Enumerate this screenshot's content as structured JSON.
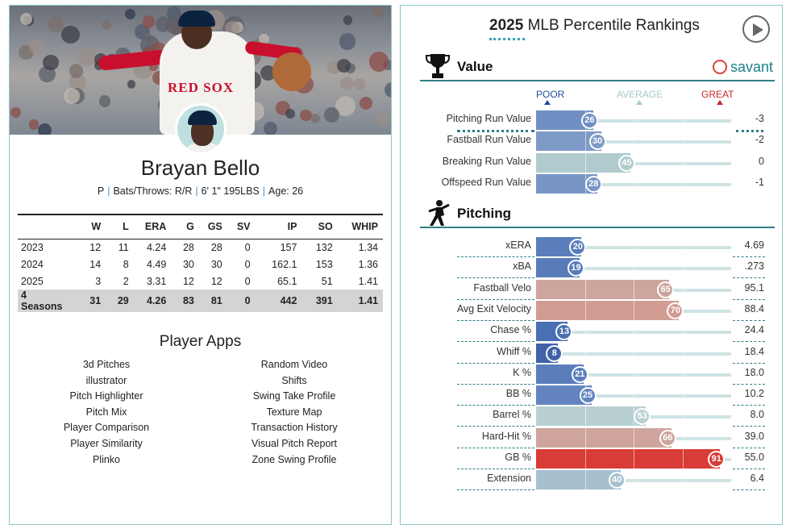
{
  "player": {
    "name": "Brayan Bello",
    "bio_position": "P",
    "bio_bats_throws": "Bats/Throws: R/R",
    "bio_size": "6' 1\" 195LBS",
    "bio_age": "Age: 26",
    "jersey_text": "RED SOX"
  },
  "stats": {
    "headers": [
      "",
      "W",
      "L",
      "ERA",
      "G",
      "GS",
      "SV",
      "IP",
      "SO",
      "WHIP"
    ],
    "rows": [
      [
        "2023",
        "12",
        "11",
        "4.24",
        "28",
        "28",
        "0",
        "157",
        "132",
        "1.34"
      ],
      [
        "2024",
        "14",
        "8",
        "4.49",
        "30",
        "30",
        "0",
        "162.1",
        "153",
        "1.36"
      ],
      [
        "2025",
        "3",
        "2",
        "3.31",
        "12",
        "12",
        "0",
        "65.1",
        "51",
        "1.41"
      ]
    ],
    "total": [
      "4 Seasons",
      "31",
      "29",
      "4.26",
      "83",
      "81",
      "0",
      "442",
      "391",
      "1.41"
    ]
  },
  "apps": {
    "title": "Player Apps",
    "left": [
      "3d Pitches",
      "illustrator",
      "Pitch Highlighter",
      "Pitch Mix",
      "Player Comparison",
      "Player Similarity",
      "Plinko"
    ],
    "right": [
      "Random Video",
      "Shifts",
      "Swing Take Profile",
      "Texture Map",
      "Transaction History",
      "Visual Pitch Report",
      "Zone Swing Profile"
    ]
  },
  "rankings": {
    "title_year": "2025",
    "title_rest": "MLB Percentile Rankings",
    "logo": "savant",
    "scale": {
      "poor": "POOR",
      "average": "AVERAGE",
      "great": "GREAT"
    },
    "colors": {
      "poor": "#3f62a8",
      "average": "#b7d3d4",
      "great": "#d32f2f",
      "poor_label": "#1f4e9c",
      "average_label": "#a9c9cb",
      "great_label": "#c62828"
    },
    "sections": [
      {
        "label": "Value",
        "icon": "trophy-icon",
        "rows": [
          {
            "label": "Pitching Run Value",
            "pct": 26,
            "value": "-3",
            "color": "#6f8fc3"
          },
          {
            "label": "Fastball Run Value",
            "pct": 30,
            "value": "-2",
            "color": "#7e9ac6"
          },
          {
            "label": "Breaking Run Value",
            "pct": 45,
            "value": "0",
            "color": "#afcbce"
          },
          {
            "label": "Offspeed Run Value",
            "pct": 28,
            "value": "-1",
            "color": "#7796c5"
          }
        ]
      },
      {
        "label": "Pitching",
        "icon": "pitcher-icon",
        "rows": [
          {
            "label": "xERA",
            "pct": 20,
            "value": "4.69",
            "color": "#5a7dbb"
          },
          {
            "label": "xBA",
            "pct": 19,
            "value": ".273",
            "color": "#587cba"
          },
          {
            "label": "Fastball Velo",
            "pct": 65,
            "value": "95.1",
            "color": "#cda59d"
          },
          {
            "label": "Avg Exit Velocity",
            "pct": 70,
            "value": "88.4",
            "color": "#d19c92"
          },
          {
            "label": "Chase %",
            "pct": 13,
            "value": "24.4",
            "color": "#4a6fb3"
          },
          {
            "label": "Whiff %",
            "pct": 8,
            "value": "18.4",
            "color": "#3f62a8"
          },
          {
            "label": "K %",
            "pct": 21,
            "value": "18.0",
            "color": "#5b7ebb"
          },
          {
            "label": "BB %",
            "pct": 25,
            "value": "10.2",
            "color": "#6384bf"
          },
          {
            "label": "Barrel %",
            "pct": 53,
            "value": "8.0",
            "color": "#b8d0d2"
          },
          {
            "label": "Hard-Hit %",
            "pct": 66,
            "value": "39.0",
            "color": "#cea49c"
          },
          {
            "label": "GB %",
            "pct": 91,
            "value": "55.0",
            "color": "#d93b36"
          },
          {
            "label": "Extension",
            "pct": 40,
            "value": "6.4",
            "color": "#a6c0cf"
          }
        ]
      }
    ]
  }
}
